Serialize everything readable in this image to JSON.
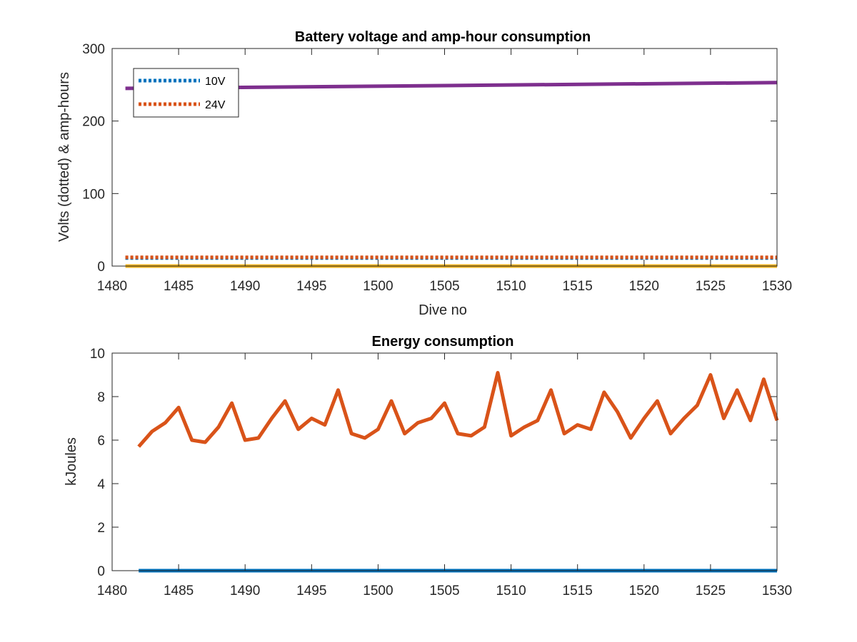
{
  "chart_data": [
    {
      "type": "line",
      "title": "Battery voltage and amp-hour consumption",
      "xlabel": "Dive no",
      "ylabel": "Volts (dotted) & amp-hours",
      "xlim": [
        1480,
        1530
      ],
      "ylim": [
        0,
        300
      ],
      "xticks": [
        1480,
        1485,
        1490,
        1495,
        1500,
        1505,
        1510,
        1515,
        1520,
        1525,
        1530
      ],
      "yticks": [
        0,
        100,
        200,
        300
      ],
      "grid": false,
      "legend": "top-left",
      "series": [
        {
          "name": "10V",
          "style": "dotted",
          "color": "#0072BD",
          "x": [
            1481,
            1530
          ],
          "values": [
            11,
            11
          ],
          "in_legend": true
        },
        {
          "name": "24V",
          "style": "dotted",
          "color": "#D95319",
          "x": [
            1481,
            1530
          ],
          "values": [
            12,
            12
          ],
          "in_legend": true
        },
        {
          "style": "solid",
          "color": "#EDB120",
          "x": [
            1481,
            1530
          ],
          "values": [
            0,
            0
          ],
          "in_legend": false
        },
        {
          "style": "solid",
          "color": "#7E2F8E",
          "x": [
            1481,
            1530
          ],
          "values": [
            245,
            253
          ],
          "in_legend": false
        }
      ]
    },
    {
      "type": "line",
      "title": "Energy consumption",
      "xlabel": "",
      "ylabel": "kJoules",
      "xlim": [
        1480,
        1530
      ],
      "ylim": [
        0,
        10
      ],
      "xticks": [
        1480,
        1485,
        1490,
        1495,
        1500,
        1505,
        1510,
        1515,
        1520,
        1525,
        1530
      ],
      "yticks": [
        0,
        2,
        4,
        6,
        8,
        10
      ],
      "grid": false,
      "series": [
        {
          "style": "solid",
          "color": "#0072BD",
          "x": [
            1482,
            1530
          ],
          "values": [
            0,
            0
          ]
        },
        {
          "style": "solid",
          "color": "#D95319",
          "x": [
            1482,
            1483,
            1484,
            1485,
            1486,
            1487,
            1488,
            1489,
            1490,
            1491,
            1492,
            1493,
            1494,
            1495,
            1496,
            1497,
            1498,
            1499,
            1500,
            1501,
            1502,
            1503,
            1504,
            1505,
            1506,
            1507,
            1508,
            1509,
            1510,
            1511,
            1512,
            1513,
            1514,
            1515,
            1516,
            1517,
            1518,
            1519,
            1520,
            1521,
            1522,
            1523,
            1524,
            1525,
            1526,
            1527,
            1528,
            1529,
            1530
          ],
          "values": [
            5.7,
            6.4,
            6.8,
            7.5,
            6.0,
            5.9,
            6.6,
            7.7,
            6.0,
            6.1,
            7.0,
            7.8,
            6.5,
            7.0,
            6.7,
            8.3,
            6.3,
            6.1,
            6.5,
            7.8,
            6.3,
            6.8,
            7.0,
            7.7,
            6.3,
            6.2,
            6.6,
            9.1,
            6.2,
            6.6,
            6.9,
            8.3,
            6.3,
            6.7,
            6.5,
            8.2,
            7.3,
            6.1,
            7.0,
            7.8,
            6.3,
            7.0,
            7.6,
            9.0,
            7.0,
            8.3,
            6.9,
            8.8,
            6.9
          ]
        }
      ]
    }
  ]
}
